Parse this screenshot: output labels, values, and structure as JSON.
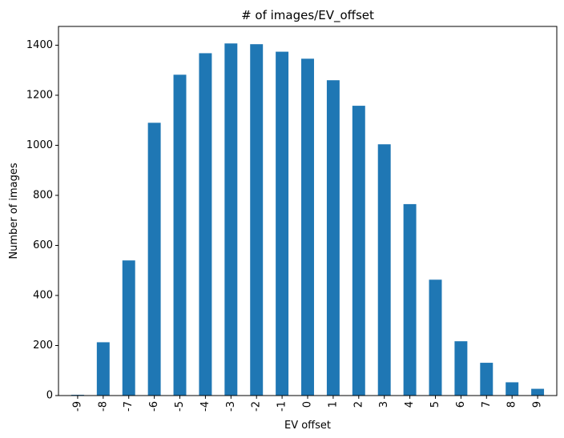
{
  "chart_data": {
    "type": "bar",
    "title": "# of images/EV_offset",
    "xlabel": "EV offset",
    "ylabel": "Number of images",
    "categories": [
      "-9",
      "-8",
      "-7",
      "-6",
      "-5",
      "-4",
      "-3",
      "-2",
      "-1",
      "0",
      "1",
      "2",
      "3",
      "4",
      "5",
      "6",
      "7",
      "8",
      "9"
    ],
    "values": [
      3,
      213,
      540,
      1090,
      1282,
      1368,
      1407,
      1404,
      1374,
      1346,
      1260,
      1158,
      1004,
      765,
      463,
      217,
      131,
      53,
      27
    ],
    "ylim": [
      0,
      1475
    ],
    "yticks": [
      0,
      200,
      400,
      600,
      800,
      1000,
      1200,
      1400
    ],
    "bar_color": "#1f77b4",
    "grid": false,
    "legend": "none"
  }
}
